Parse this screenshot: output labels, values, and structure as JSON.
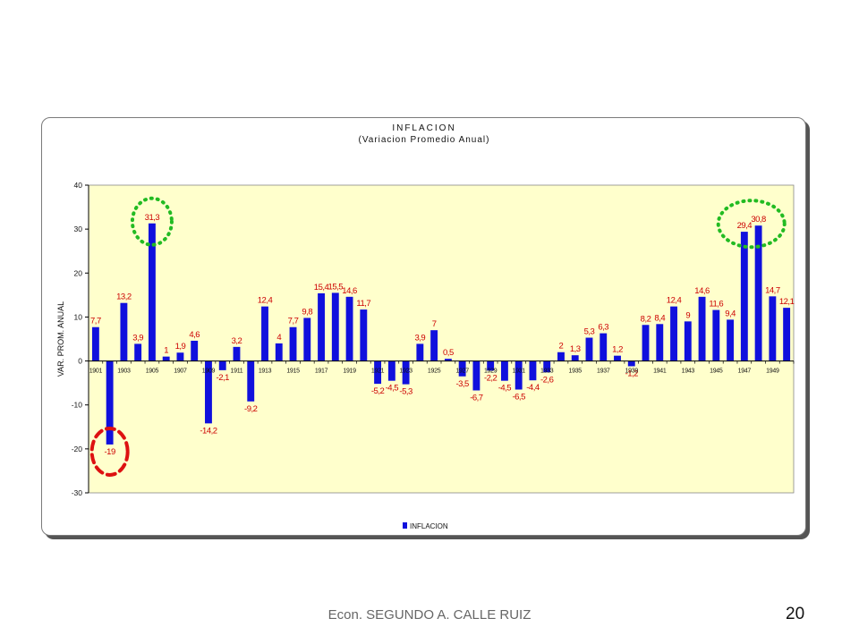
{
  "slide": {
    "author": "Econ. SEGUNDO A. CALLE RUIZ",
    "page_number": "20"
  },
  "chart_data": {
    "type": "bar",
    "title": "INFLACION",
    "subtitle": "(Variacion Promedio Anual)",
    "ylabel": "VAR. PROM. ANUAL",
    "legend": {
      "entries": [
        "INFLACION"
      ],
      "placement": "bottom"
    },
    "ylim": [
      -30,
      40
    ],
    "y_ticks": [
      "40",
      "30",
      "20",
      "10",
      "0",
      "-10",
      "-20",
      "-30"
    ],
    "y_tick_values": [
      40,
      30,
      20,
      10,
      0,
      -10,
      -20,
      -30
    ],
    "grid": false,
    "colors": {
      "bar": "#1010dd",
      "plot_background": "#ffffcc",
      "data_label": "#cc0000",
      "highlight_high": "#22bb22",
      "highlight_low": "#dd1111"
    },
    "categories": [
      1901,
      1902,
      1903,
      1904,
      1905,
      1906,
      1907,
      1908,
      1909,
      1910,
      1911,
      1912,
      1913,
      1914,
      1915,
      1916,
      1917,
      1918,
      1919,
      1920,
      1921,
      1922,
      1923,
      1924,
      1925,
      1926,
      1927,
      1928,
      1929,
      1930,
      1931,
      1932,
      1933,
      1934,
      1935,
      1936,
      1937,
      1938,
      1939,
      1940,
      1941,
      1942,
      1943,
      1944,
      1945,
      1946,
      1947,
      1948,
      1949,
      1950
    ],
    "x_tick_labels": [
      "1901",
      "1903",
      "1905",
      "1907",
      "1909",
      "1911",
      "1913",
      "1915",
      "1917",
      "1919",
      "1921",
      "1923",
      "1925",
      "1927",
      "1929",
      "1931",
      "1933",
      "1935",
      "1937",
      "1939",
      "1941",
      "1943",
      "1945",
      "1947",
      "1949"
    ],
    "values": [
      7.7,
      -19,
      13.2,
      3.9,
      31.3,
      1,
      1.9,
      4.6,
      -14.2,
      -2.1,
      3.2,
      -9.2,
      12.4,
      4,
      7.7,
      9.8,
      15.4,
      15.5,
      14.6,
      11.7,
      -5.2,
      -4.5,
      -5.3,
      3.9,
      7,
      0.5,
      -3.5,
      -6.7,
      -2.2,
      -4.5,
      -6.5,
      -4.4,
      -2.6,
      2,
      1.3,
      5.3,
      6.3,
      1.2,
      -1.2,
      8.2,
      8.4,
      12.4,
      9,
      14.6,
      11.6,
      9.4,
      29.4,
      30.8,
      14.7,
      12.1
    ],
    "data_labels": [
      "7,7",
      "-19",
      "13,2",
      "3,9",
      "31,3",
      "1",
      "1,9",
      "4,6",
      "-14,2",
      "-2,1",
      "3,2",
      "-9,2",
      "12,4",
      "4",
      "7,7",
      "9,8",
      "15,4",
      "15,5",
      "14,6",
      "11,7",
      "-5,2",
      "-4,5",
      "-5,3",
      "3,9",
      "7",
      "0,5",
      "-3,5",
      "-6,7",
      "-2,2",
      "-4,5",
      "-6,5",
      "-4,4",
      "-2,6",
      "2",
      "1,3",
      "5,3",
      "6,3",
      "1,2",
      "-1,2",
      "8,2",
      "8,4",
      "12,4",
      "9",
      "14,6",
      "11,6",
      "9,4",
      "29,4",
      "30,8",
      "14,7",
      "12,1"
    ],
    "highlights": [
      {
        "style": "dotted-ellipse",
        "color": "highlight_high",
        "years": [
          1905
        ]
      },
      {
        "style": "dotted-ellipse",
        "color": "highlight_high",
        "years": [
          1947,
          1948
        ]
      },
      {
        "style": "dashed-ellipse",
        "color": "highlight_low",
        "years": [
          1902
        ]
      }
    ]
  }
}
